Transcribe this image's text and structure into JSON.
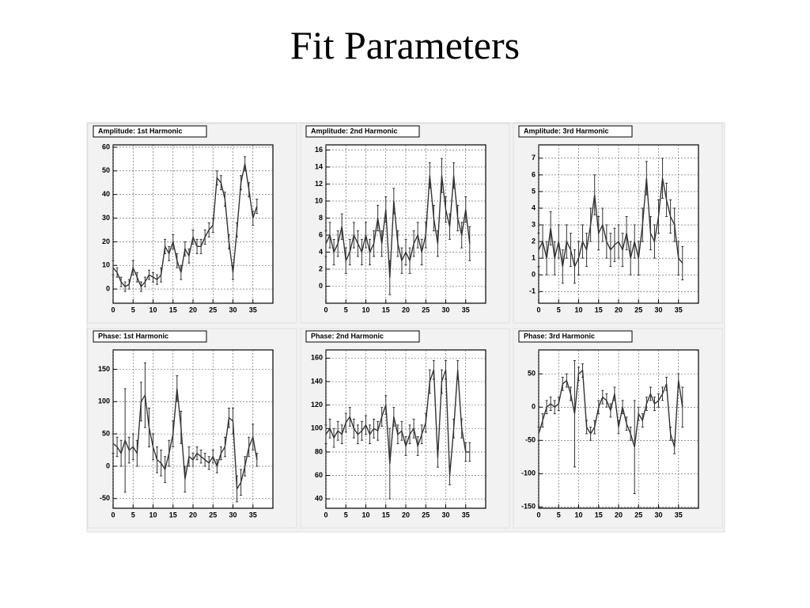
{
  "title": "Fit Parameters",
  "chart_data": [
    {
      "type": "line",
      "title": "Amplitude: 1st Harmonic",
      "x": [
        0,
        1,
        2,
        3,
        4,
        5,
        6,
        7,
        8,
        9,
        10,
        11,
        12,
        13,
        14,
        15,
        16,
        17,
        18,
        19,
        20,
        21,
        22,
        23,
        24,
        25,
        26,
        27,
        28,
        29,
        30,
        31,
        32,
        33,
        34,
        35,
        36
      ],
      "series": [
        {
          "color": "#333333",
          "values": [
            9,
            7,
            3,
            1,
            2,
            9,
            5,
            1,
            3,
            6,
            5,
            4,
            6,
            18,
            15,
            20,
            12,
            7,
            17,
            14,
            22,
            18,
            18,
            22,
            25,
            27,
            47,
            45,
            38,
            20,
            7,
            25,
            45,
            53,
            42,
            30,
            35
          ],
          "errors": [
            3,
            2,
            2,
            2,
            2,
            3,
            2,
            2,
            2,
            2,
            2,
            2,
            3,
            3,
            3,
            3,
            3,
            3,
            3,
            3,
            3,
            3,
            3,
            3,
            3,
            3,
            3,
            3,
            3,
            3,
            3,
            3,
            3,
            3,
            3,
            3,
            3
          ]
        }
      ],
      "xlim": [
        0,
        40
      ],
      "ylim": [
        -6,
        61
      ],
      "xticks": [
        0,
        5,
        10,
        15,
        20,
        25,
        30,
        35
      ],
      "yticks": [
        0,
        10,
        20,
        30,
        40,
        50,
        60
      ],
      "grid": true
    },
    {
      "type": "line",
      "title": "Amplitude: 2nd Harmonic",
      "x": [
        0,
        1,
        2,
        3,
        4,
        5,
        6,
        7,
        8,
        9,
        10,
        11,
        12,
        13,
        14,
        15,
        16,
        17,
        18,
        19,
        20,
        21,
        22,
        23,
        24,
        25,
        26,
        27,
        28,
        29,
        30,
        31,
        32,
        33,
        34,
        35,
        36
      ],
      "series": [
        {
          "color": "#333333",
          "values": [
            5,
            6,
            4,
            5,
            7,
            3,
            4,
            6,
            5,
            4,
            6,
            4,
            5,
            8,
            5,
            9,
            1,
            10,
            5,
            3,
            4,
            3,
            5,
            6,
            4,
            6,
            13,
            8,
            5,
            13,
            9,
            7,
            13,
            8,
            6,
            9,
            5
          ],
          "errors": [
            1.5,
            1.5,
            1.5,
            1.5,
            1.5,
            1.5,
            1.5,
            1.5,
            1.5,
            1.5,
            1.5,
            1.5,
            1.5,
            1.5,
            1.5,
            1.5,
            2,
            1.5,
            1.5,
            1.5,
            1.5,
            1.5,
            1.5,
            1.5,
            1.5,
            1.5,
            1.5,
            1.5,
            1.5,
            2,
            1.5,
            1.5,
            1.5,
            1.5,
            1.5,
            1.5,
            2
          ]
        }
      ],
      "xlim": [
        0,
        40
      ],
      "ylim": [
        -2,
        16.6
      ],
      "xticks": [
        0,
        5,
        10,
        15,
        20,
        25,
        30,
        35
      ],
      "yticks": [
        0,
        2,
        4,
        6,
        8,
        10,
        12,
        14,
        16
      ],
      "grid": true
    },
    {
      "type": "line",
      "title": "Amplitude: 3rd Harmonic",
      "x": [
        0,
        1,
        2,
        3,
        4,
        5,
        6,
        7,
        8,
        9,
        10,
        11,
        12,
        13,
        14,
        15,
        16,
        17,
        18,
        19,
        20,
        21,
        22,
        23,
        24,
        25,
        26,
        27,
        28,
        29,
        30,
        31,
        32,
        33,
        34,
        35,
        36
      ],
      "series": [
        {
          "color": "#333333",
          "values": [
            1.5,
            2,
            1,
            2.8,
            1,
            2,
            0.5,
            2,
            1.5,
            0.5,
            1,
            2,
            1.5,
            3,
            4.8,
            2.5,
            3,
            2,
            1.5,
            1.8,
            2,
            1.5,
            2.5,
            1,
            2,
            1,
            3,
            5.8,
            2.5,
            2,
            3.5,
            5.8,
            4.5,
            3.5,
            3,
            1,
            0.7
          ],
          "errors": [
            1,
            1,
            1,
            1,
            1,
            1,
            1,
            1,
            1,
            1,
            1,
            1,
            1,
            1,
            1.2,
            1,
            1,
            1,
            1,
            1,
            1,
            1,
            1,
            1,
            1,
            1,
            1,
            1,
            1,
            1,
            1,
            1.2,
            1,
            1,
            1,
            1,
            1
          ]
        }
      ],
      "xlim": [
        0,
        40
      ],
      "ylim": [
        -1.7,
        7.8
      ],
      "xticks": [
        0,
        5,
        10,
        15,
        20,
        25,
        30,
        35
      ],
      "yticks": [
        -1,
        0,
        1,
        2,
        3,
        4,
        5,
        6,
        7
      ],
      "grid": true
    },
    {
      "type": "line",
      "title": "Phase: 1st Harmonic",
      "x": [
        0,
        1,
        2,
        3,
        4,
        5,
        6,
        7,
        8,
        9,
        10,
        11,
        12,
        13,
        14,
        15,
        16,
        17,
        18,
        19,
        20,
        21,
        22,
        23,
        24,
        25,
        26,
        27,
        28,
        29,
        30,
        31,
        32,
        33,
        34,
        35,
        36
      ],
      "series": [
        {
          "color": "#333333",
          "values": [
            35,
            30,
            20,
            40,
            25,
            30,
            20,
            100,
            110,
            60,
            30,
            10,
            5,
            -5,
            20,
            50,
            120,
            60,
            -20,
            15,
            10,
            20,
            15,
            10,
            5,
            15,
            0,
            20,
            30,
            75,
            70,
            -35,
            -25,
            0,
            30,
            45,
            10
          ],
          "errors": [
            15,
            15,
            20,
            80,
            20,
            20,
            20,
            30,
            50,
            30,
            20,
            20,
            20,
            20,
            20,
            20,
            20,
            25,
            20,
            15,
            10,
            10,
            10,
            10,
            10,
            10,
            10,
            10,
            15,
            15,
            20,
            20,
            20,
            15,
            15,
            20,
            10
          ]
        }
      ],
      "xlim": [
        0,
        40
      ],
      "ylim": [
        -65,
        180
      ],
      "xticks": [
        0,
        5,
        10,
        15,
        20,
        25,
        30,
        35
      ],
      "yticks": [
        -50,
        0,
        50,
        100,
        150
      ],
      "grid": true
    },
    {
      "type": "line",
      "title": "Phase: 2nd Harmonic",
      "x": [
        0,
        1,
        2,
        3,
        4,
        5,
        6,
        7,
        8,
        9,
        10,
        11,
        12,
        13,
        14,
        15,
        16,
        17,
        18,
        19,
        20,
        21,
        22,
        23,
        24,
        25,
        26,
        27,
        28,
        29,
        30,
        31,
        32,
        33,
        34,
        35,
        36
      ],
      "series": [
        {
          "color": "#333333",
          "values": [
            95,
            100,
            92,
            98,
            95,
            105,
            110,
            100,
            95,
            98,
            103,
            95,
            100,
            98,
            110,
            120,
            70,
            110,
            95,
            98,
            85,
            95,
            100,
            85,
            95,
            105,
            140,
            150,
            75,
            140,
            150,
            60,
            100,
            150,
            100,
            80,
            80
          ],
          "errors": [
            8,
            8,
            8,
            8,
            8,
            8,
            8,
            8,
            8,
            8,
            8,
            8,
            8,
            8,
            8,
            8,
            30,
            8,
            8,
            8,
            8,
            8,
            8,
            8,
            8,
            8,
            10,
            8,
            8,
            10,
            8,
            8,
            8,
            8,
            8,
            8,
            8
          ]
        }
      ],
      "xlim": [
        0,
        40
      ],
      "ylim": [
        32,
        167
      ],
      "xticks": [
        0,
        5,
        10,
        15,
        20,
        25,
        30,
        35
      ],
      "yticks": [
        40,
        60,
        80,
        100,
        120,
        140,
        160
      ],
      "grid": true
    },
    {
      "type": "line",
      "title": "Phase: 3rd Harmonic",
      "x": [
        0,
        1,
        2,
        3,
        4,
        5,
        6,
        7,
        8,
        9,
        10,
        11,
        12,
        13,
        14,
        15,
        16,
        17,
        18,
        19,
        20,
        21,
        22,
        23,
        24,
        25,
        26,
        27,
        28,
        29,
        30,
        31,
        32,
        33,
        34,
        35,
        36
      ],
      "series": [
        {
          "color": "#333333",
          "values": [
            -40,
            -20,
            0,
            5,
            0,
            5,
            35,
            40,
            20,
            -10,
            50,
            55,
            -30,
            -40,
            -30,
            0,
            15,
            10,
            -5,
            20,
            -30,
            0,
            -25,
            -40,
            -60,
            -10,
            -20,
            5,
            20,
            5,
            10,
            20,
            35,
            -40,
            -60,
            40,
            0
          ],
          "errors": [
            10,
            10,
            10,
            10,
            10,
            10,
            10,
            10,
            10,
            80,
            10,
            10,
            10,
            10,
            10,
            10,
            10,
            10,
            10,
            10,
            10,
            10,
            10,
            10,
            70,
            10,
            10,
            10,
            10,
            10,
            10,
            10,
            10,
            10,
            10,
            10,
            30
          ]
        }
      ],
      "xlim": [
        0,
        40
      ],
      "ylim": [
        -152,
        86
      ],
      "xticks": [
        0,
        5,
        10,
        15,
        20,
        25,
        30,
        35
      ],
      "yticks": [
        -150,
        -100,
        -50,
        0,
        50
      ],
      "grid": true
    }
  ]
}
